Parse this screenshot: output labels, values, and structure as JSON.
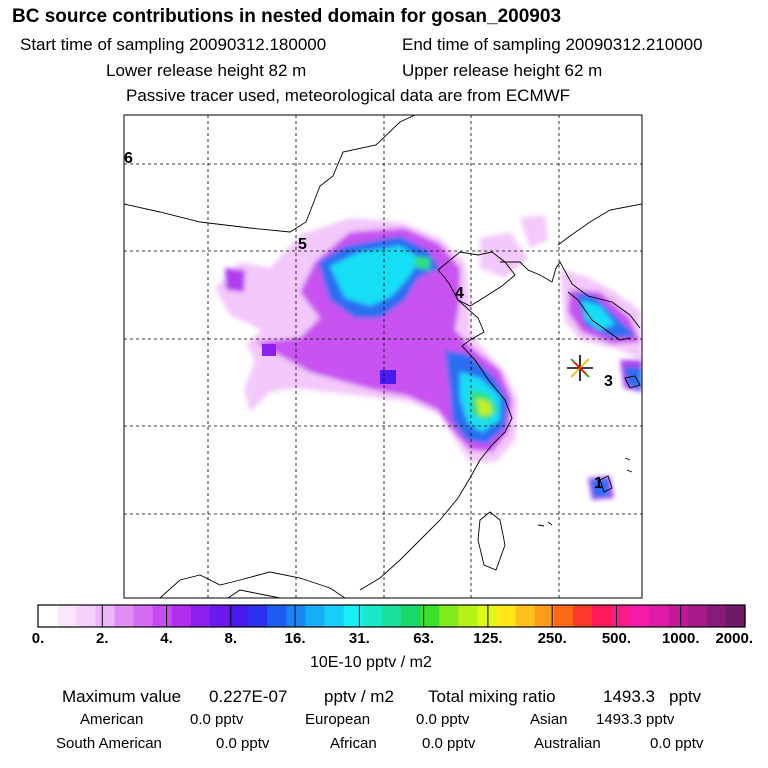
{
  "header": {
    "title": "BC  source contributions in nested domain for gosan_200903",
    "start_time": "Start time of sampling 20090312.180000",
    "end_time": "End time of sampling 20090312.210000",
    "lower_height": "Lower release height   82 m",
    "upper_height": "Upper release height   62 m",
    "tracer_note": "Passive tracer used, meteorological data are from ECMWF"
  },
  "chart_data": {
    "type": "heatmap",
    "title": "BC  source contributions in nested domain for gosan_200903",
    "colorbar": {
      "ticks": [
        "0.",
        "2.",
        "4.",
        "8.",
        "16.",
        "31.",
        "63.",
        "125.",
        "250.",
        "500.",
        "1000.",
        "2000."
      ],
      "unit_label": "10E-10 pptv / m2",
      "colors": [
        "#ffffff",
        "#fbe8fd",
        "#f6d0fb",
        "#efb7f9",
        "#e08ef5",
        "#d46cf3",
        "#c84cf1",
        "#b02ef0",
        "#8a1ff0",
        "#6a1af0",
        "#4a1bf0",
        "#2a2ff0",
        "#1e5cf2",
        "#1a86f4",
        "#18aef6",
        "#18cff8",
        "#18f0f4",
        "#18e8c8",
        "#18e09a",
        "#18d86a",
        "#3ae02a",
        "#80ec1a",
        "#b8f21a",
        "#e0f81a",
        "#ffe81a",
        "#ffc01a",
        "#ff9a1a",
        "#ff6a1a",
        "#ff3a2a",
        "#ff1a5a",
        "#ff1a8a",
        "#f51aa8",
        "#e01aa8",
        "#c41a9a",
        "#a81a8a",
        "#8a1a7a",
        "#6e1a66"
      ]
    },
    "release_markers": [
      "1",
      "3",
      "4",
      "5",
      "6"
    ],
    "receptor_symbol": "gosan"
  },
  "summary": {
    "max_label": "Maximum value",
    "max_value": "0.227E-07",
    "max_unit": "pptv / m2",
    "total_label": "Total mixing ratio",
    "total_value": "1493.3",
    "total_unit": "pptv",
    "contributions": [
      {
        "region": "American",
        "value": "0.0 pptv"
      },
      {
        "region": "European",
        "value": "0.0 pptv"
      },
      {
        "region": "Asian",
        "value": "1493.3 pptv"
      },
      {
        "region": "South American",
        "value": "0.0 pptv"
      },
      {
        "region": "African",
        "value": "0.0 pptv"
      },
      {
        "region": "Australian",
        "value": "0.0 pptv"
      }
    ]
  }
}
